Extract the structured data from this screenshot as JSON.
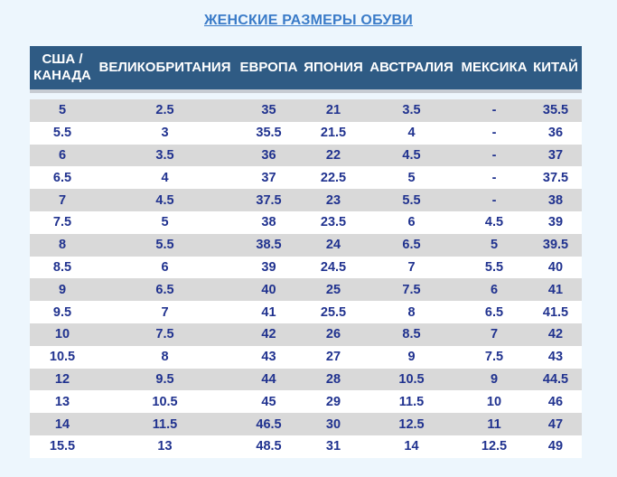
{
  "title": "ЖЕНСКИЕ РАЗМЕРЫ ОБУВИ",
  "table": {
    "headers": [
      "США / КАНАДА",
      "ВЕЛИКОБРИТАНИЯ",
      "ЕВРОПА",
      "ЯПОНИЯ",
      "АВСТРАЛИЯ",
      "МЕКСИКА",
      "КИТАЙ"
    ],
    "rows": [
      [
        "5",
        "2.5",
        "35",
        "21",
        "3.5",
        "-",
        "35.5"
      ],
      [
        "5.5",
        "3",
        "35.5",
        "21.5",
        "4",
        "-",
        "36"
      ],
      [
        "6",
        "3.5",
        "36",
        "22",
        "4.5",
        "-",
        "37"
      ],
      [
        "6.5",
        "4",
        "37",
        "22.5",
        "5",
        "-",
        "37.5"
      ],
      [
        "7",
        "4.5",
        "37.5",
        "23",
        "5.5",
        "-",
        "38"
      ],
      [
        "7.5",
        "5",
        "38",
        "23.5",
        "6",
        "4.5",
        "39"
      ],
      [
        "8",
        "5.5",
        "38.5",
        "24",
        "6.5",
        "5",
        "39.5"
      ],
      [
        "8.5",
        "6",
        "39",
        "24.5",
        "7",
        "5.5",
        "40"
      ],
      [
        "9",
        "6.5",
        "40",
        "25",
        "7.5",
        "6",
        "41"
      ],
      [
        "9.5",
        "7",
        "41",
        "25.5",
        "8",
        "6.5",
        "41.5"
      ],
      [
        "10",
        "7.5",
        "42",
        "26",
        "8.5",
        "7",
        "42"
      ],
      [
        "10.5",
        "8",
        "43",
        "27",
        "9",
        "7.5",
        "43"
      ],
      [
        "12",
        "9.5",
        "44",
        "28",
        "10.5",
        "9",
        "44.5"
      ],
      [
        "13",
        "10.5",
        "45",
        "29",
        "11.5",
        "10",
        "46"
      ],
      [
        "14",
        "11.5",
        "46.5",
        "30",
        "12.5",
        "11",
        "47"
      ],
      [
        "15.5",
        "13",
        "48.5",
        "31",
        "14",
        "12.5",
        "49"
      ]
    ]
  },
  "colors": {
    "title": "#3a7bc8",
    "header_bg": "#2f5b84",
    "row_alt": "#d9d9d9",
    "cell_text": "#20328f",
    "page_bg": "#edf6fd"
  }
}
